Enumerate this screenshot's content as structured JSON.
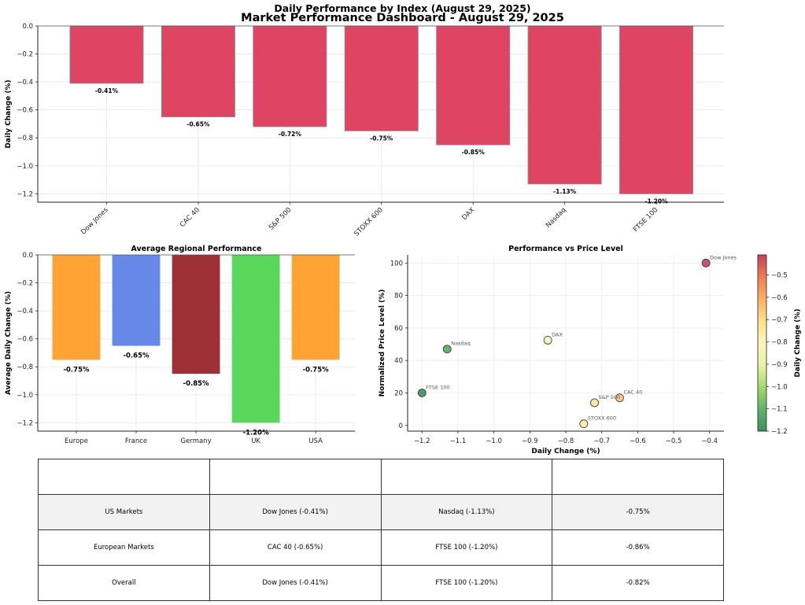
{
  "suptitle": "Market Performance Dashboard - August 29, 2025",
  "colors": {
    "bar_negative": "#e04463",
    "regional": {
      "Europe": "#ffa334",
      "France": "#6688e6",
      "Germany": "#9c3034",
      "UK": "#5bd85b",
      "USA": "#ffa334"
    },
    "colormap": [
      "#3f8f5c",
      "#5fb46a",
      "#a6d86c",
      "#e7f3a6",
      "#fdf6c0",
      "#fee08b",
      "#fdb064",
      "#f07c52",
      "#c8405a"
    ]
  },
  "chart_data": [
    {
      "id": "index-bars",
      "type": "bar",
      "title": "Daily Performance by Index (August 29, 2025)",
      "xlabel": "",
      "ylabel": "Daily Change (%)",
      "categories": [
        "Dow Jones",
        "CAC 40",
        "S&P 500",
        "STOXX 600",
        "DAX",
        "Nasdaq",
        "FTSE 100"
      ],
      "values": [
        -0.41,
        -0.65,
        -0.72,
        -0.75,
        -0.85,
        -1.13,
        -1.2
      ],
      "data_labels": [
        "-0.41%",
        "-0.65%",
        "-0.72%",
        "-0.75%",
        "-0.85%",
        "-1.13%",
        "-1.20%"
      ],
      "yticks": [
        0.0,
        -0.2,
        -0.4,
        -0.6,
        -0.8,
        -1.0,
        -1.2
      ],
      "ytick_labels": [
        "0.0",
        "−0.2",
        "−0.4",
        "−0.6",
        "−0.8",
        "−1.0",
        "−1.2"
      ],
      "ylim": [
        -1.26,
        0.0
      ],
      "grid": true
    },
    {
      "id": "regional-bars",
      "type": "bar",
      "title": "Average Regional Performance",
      "xlabel": "",
      "ylabel": "Average Daily Change (%)",
      "categories": [
        "Europe",
        "France",
        "Germany",
        "UK",
        "USA"
      ],
      "values": [
        -0.75,
        -0.65,
        -0.85,
        -1.2,
        -0.75
      ],
      "data_labels": [
        "-0.75%",
        "-0.65%",
        "-0.85%",
        "-1.20%",
        "-0.75%"
      ],
      "yticks": [
        0.0,
        -0.2,
        -0.4,
        -0.6,
        -0.8,
        -1.0,
        -1.2
      ],
      "ytick_labels": [
        "0.0",
        "−0.2",
        "−0.4",
        "−0.6",
        "−0.8",
        "−1.0",
        "−1.2"
      ],
      "ylim": [
        -1.26,
        0.0
      ],
      "grid": true
    },
    {
      "id": "scatter",
      "type": "scatter",
      "title": "Performance vs Price Level",
      "xlabel": "Daily Change (%)",
      "ylabel": "Normalized Price Level (%)",
      "points": [
        {
          "label": "Dow Jones",
          "x": -0.41,
          "y": 100
        },
        {
          "label": "CAC 40",
          "x": -0.65,
          "y": 17
        },
        {
          "label": "S&P 500",
          "x": -0.72,
          "y": 14
        },
        {
          "label": "STOXX 600",
          "x": -0.75,
          "y": 1
        },
        {
          "label": "DAX",
          "x": -0.85,
          "y": 52.5
        },
        {
          "label": "Nasdaq",
          "x": -1.13,
          "y": 47
        },
        {
          "label": "FTSE 100",
          "x": -1.2,
          "y": 20
        }
      ],
      "xticks": [
        -1.2,
        -1.1,
        -1.0,
        -0.9,
        -0.8,
        -0.7,
        -0.6,
        -0.5,
        -0.4
      ],
      "xtick_labels": [
        "−1.2",
        "−1.1",
        "−1.0",
        "−0.9",
        "−0.8",
        "−0.7",
        "−0.6",
        "−0.5",
        "−0.4"
      ],
      "yticks": [
        0,
        20,
        40,
        60,
        80,
        100
      ],
      "ytick_labels": [
        "0",
        "20",
        "40",
        "60",
        "80",
        "100"
      ],
      "xlim": [
        -1.24,
        -0.36
      ],
      "ylim": [
        -3.5,
        105
      ],
      "grid": true,
      "colorbar": {
        "label": "Daily Change (%)",
        "range": [
          -1.2,
          -0.41
        ],
        "ticks": [
          -0.5,
          -0.6,
          -0.7,
          -0.8,
          -0.9,
          -1.0,
          -1.1,
          -1.2
        ],
        "tick_labels": [
          "−0.5",
          "−0.6",
          "−0.7",
          "−0.8",
          "−0.9",
          "−1.0",
          "−1.1",
          "−1.2"
        ],
        "colormap": "RdYlGn (reversed)"
      }
    }
  ],
  "table": {
    "headers": [
      "",
      "",
      "",
      ""
    ],
    "rows": [
      [
        "US Markets",
        "Dow Jones (-0.41%)",
        "Nasdaq (-1.13%)",
        "-0.75%"
      ],
      [
        "European Markets",
        "CAC 40 (-0.65%)",
        "FTSE 100 (-1.20%)",
        "-0.86%"
      ],
      [
        "Overall",
        "Dow Jones (-0.41%)",
        "FTSE 100 (-1.20%)",
        "-0.82%"
      ]
    ]
  }
}
